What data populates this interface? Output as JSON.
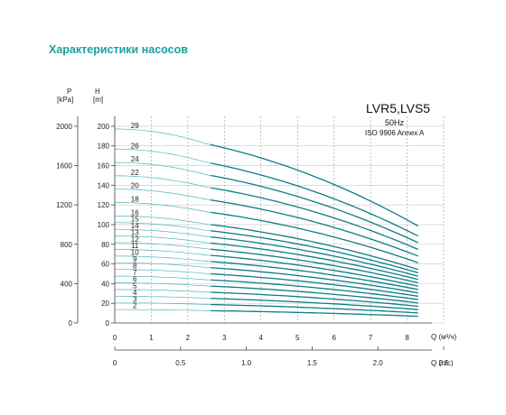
{
  "page": {
    "title": "Характеристики насосов"
  },
  "chart_data": {
    "type": "line",
    "title": "LVR5,LVS5",
    "subtitle_hz": "50Hz",
    "standard": "ISO 9906 Annex A",
    "y_left_outer_label": "P",
    "y_left_outer_unit": "[kPa]",
    "y_left_outer_ticks": [
      "0",
      "400",
      "800",
      "1200",
      "1600",
      "2000"
    ],
    "y_left_inner_label": "H",
    "y_left_inner_unit": "[m]",
    "y_left_inner_ticks": [
      "0",
      "20",
      "40",
      "60",
      "80",
      "100",
      "120",
      "140",
      "160",
      "180",
      "200"
    ],
    "xlabel_m3h": "Q (м³/ч)",
    "x_ticks_m3h": [
      "0",
      "1",
      "2",
      "3",
      "4",
      "5",
      "6",
      "7",
      "8"
    ],
    "xlabel_ls": "Q (л/с)",
    "x_ticks_ls": [
      "0",
      "0.5",
      "1.0",
      "1.5",
      "2.0",
      "2.5"
    ],
    "xlim_m3h": [
      0,
      9
    ],
    "ylim_m": [
      0,
      210
    ],
    "grid": true,
    "recommended_range_m3h": [
      2.5,
      8.3
    ],
    "curves": [
      {
        "stages": 2,
        "label": "2",
        "h0": 13.6
      },
      {
        "stages": 3,
        "label": "3",
        "h0": 20.4
      },
      {
        "stages": 4,
        "label": "4",
        "h0": 27.2
      },
      {
        "stages": 5,
        "label": "5",
        "h0": 34.0
      },
      {
        "stages": 6,
        "label": "6",
        "h0": 40.8
      },
      {
        "stages": 7,
        "label": "7",
        "h0": 47.6
      },
      {
        "stages": 8,
        "label": "8",
        "h0": 54.4
      },
      {
        "stages": 9,
        "label": "9",
        "h0": 61.2
      },
      {
        "stages": 10,
        "label": "10",
        "h0": 68.0
      },
      {
        "stages": 11,
        "label": "11",
        "h0": 74.8
      },
      {
        "stages": 12,
        "label": "12",
        "h0": 81.6
      },
      {
        "stages": 13,
        "label": "13",
        "h0": 88.4
      },
      {
        "stages": 14,
        "label": "14",
        "h0": 95.2
      },
      {
        "stages": 15,
        "label": "15",
        "h0": 102.0
      },
      {
        "stages": 16,
        "label": "16",
        "h0": 108.8
      },
      {
        "stages": 18,
        "label": "18",
        "h0": 122.4
      },
      {
        "stages": 20,
        "label": "20",
        "h0": 136.0
      },
      {
        "stages": 22,
        "label": "22",
        "h0": 149.6
      },
      {
        "stages": 24,
        "label": "24",
        "h0": 163.2
      },
      {
        "stages": 26,
        "label": "26",
        "h0": 176.8
      },
      {
        "stages": 29,
        "label": "29",
        "h0": 197.2
      }
    ],
    "head_ratio_at_q": {
      "q_m3h": [
        0,
        2.5,
        8.3
      ],
      "ratio": [
        1.0,
        0.924,
        0.5
      ]
    },
    "labeled_stage_list": "2,3,4,5,6,7,8,9,10,11,12,13,14,15,16,18,20,22,24,26,29"
  },
  "colors": {
    "accent": "#17a2a0",
    "curve": "#0f7d86",
    "curve_light": "#4fb6b8",
    "grid": "#c8c8c8",
    "grid_dash": "#9a9a9a"
  }
}
